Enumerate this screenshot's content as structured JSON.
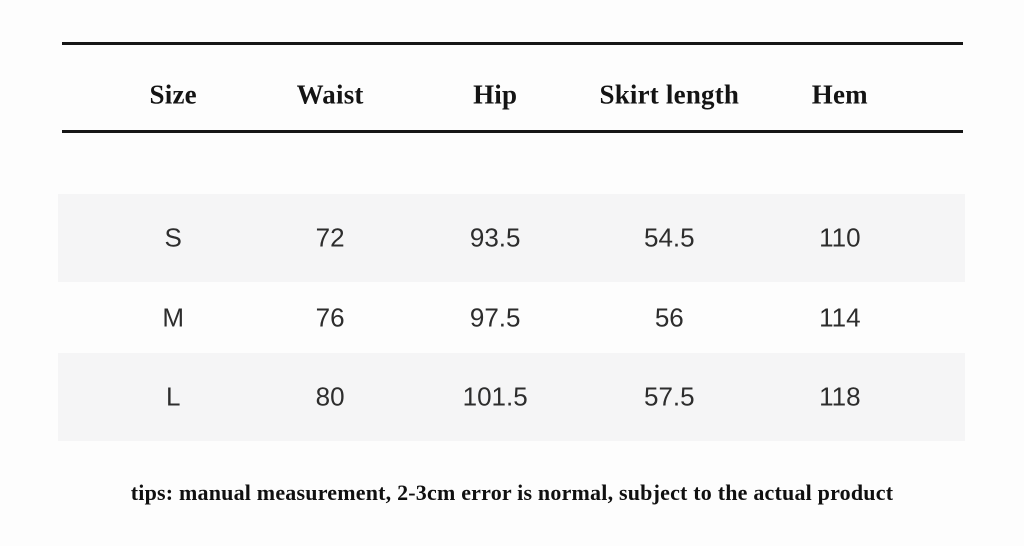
{
  "chart_data": {
    "type": "table",
    "title": "",
    "columns": [
      "Size",
      "Waist",
      "Hip",
      "Skirt length",
      "Hem"
    ],
    "rows": [
      [
        "S",
        "72",
        "93.5",
        "54.5",
        "110"
      ],
      [
        "M",
        "76",
        "97.5",
        "56",
        "114"
      ],
      [
        "L",
        "80",
        "101.5",
        "57.5",
        "118"
      ]
    ],
    "note": "tips: manual measurement, 2-3cm error is normal, subject to the actual product",
    "layout_hints": {
      "striped_rows": [
        "S",
        "L"
      ],
      "header_rules": "heavy rule above and below header row",
      "alignment": "all cells centered"
    }
  },
  "colors": {
    "background": "#fdfdfd",
    "stripe": "#f5f5f6",
    "rule": "#161616",
    "header_text": "#141414",
    "cell_text": "#2d2d2d",
    "tip_text": "#101010"
  }
}
